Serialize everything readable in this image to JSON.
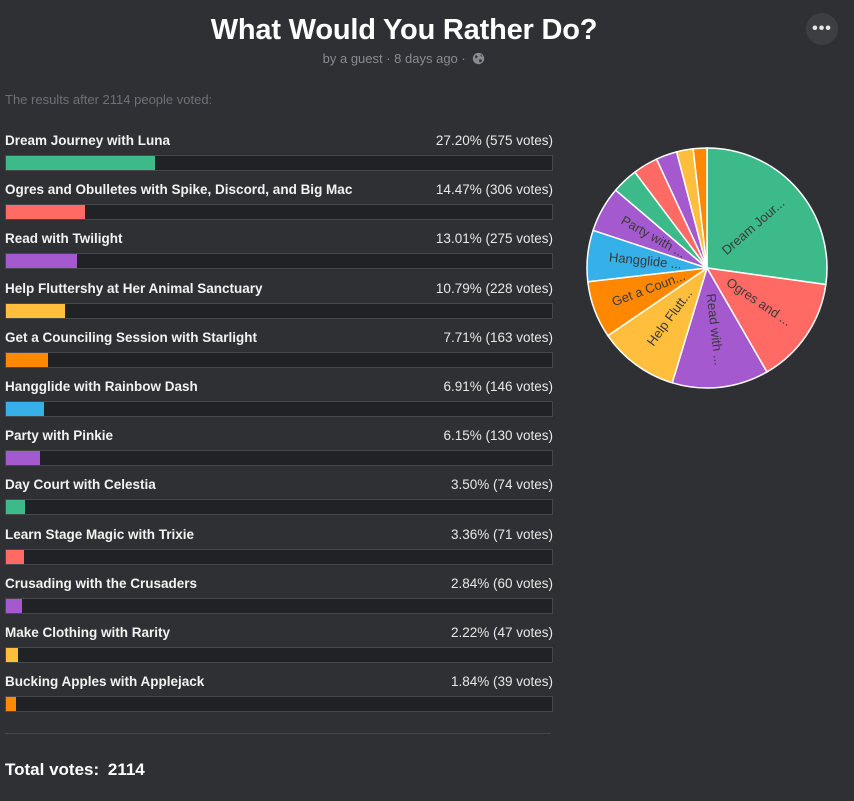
{
  "poll": {
    "title": "What Would You Rather Do?",
    "meta": "by a guest · 8 days ago ·",
    "intro": "The results after 2114 people voted:",
    "total_label": "Total votes:",
    "total_value": "2114",
    "menu_icon": "ellipsis-icon"
  },
  "chart_data": {
    "type": "pie",
    "title": "What Would You Rather Do?",
    "total_votes": 2114,
    "options": [
      {
        "label": "Dream Journey with Luna",
        "percent": 27.2,
        "votes": 575,
        "stat": "27.20% (575 votes)",
        "color": "#3dba8a",
        "slice_label": "Dream Jour..."
      },
      {
        "label": "Ogres and Obulletes with Spike, Discord, and Big Mac",
        "percent": 14.47,
        "votes": 306,
        "stat": "14.47% (306 votes)",
        "color": "#ff6b64",
        "slice_label": "Ogres and ..."
      },
      {
        "label": "Read with Twilight",
        "percent": 13.01,
        "votes": 275,
        "stat": "13.01% (275 votes)",
        "color": "#a459cf",
        "slice_label": "Read with ..."
      },
      {
        "label": "Help Fluttershy at Her Animal Sanctuary",
        "percent": 10.79,
        "votes": 228,
        "stat": "10.79% (228 votes)",
        "color": "#ffbf3d",
        "slice_label": "Help Flutt..."
      },
      {
        "label": "Get a Counciling Session with Starlight",
        "percent": 7.71,
        "votes": 163,
        "stat": "7.71% (163 votes)",
        "color": "#ff8800",
        "slice_label": "Get a Coun..."
      },
      {
        "label": "Hangglide with Rainbow Dash",
        "percent": 6.91,
        "votes": 146,
        "stat": "6.91% (146 votes)",
        "color": "#35b0e8",
        "slice_label": "Hangglide ..."
      },
      {
        "label": "Party with Pinkie",
        "percent": 6.15,
        "votes": 130,
        "stat": "6.15% (130 votes)",
        "color": "#a459cf",
        "slice_label": "Party with ..."
      },
      {
        "label": "Day Court with Celestia",
        "percent": 3.5,
        "votes": 74,
        "stat": "3.50% (74 votes)",
        "color": "#3dba8a",
        "slice_label": ""
      },
      {
        "label": "Learn Stage Magic with Trixie",
        "percent": 3.36,
        "votes": 71,
        "stat": "3.36% (71 votes)",
        "color": "#ff6b64",
        "slice_label": ""
      },
      {
        "label": "Crusading with the Crusaders",
        "percent": 2.84,
        "votes": 60,
        "stat": "2.84% (60 votes)",
        "color": "#a459cf",
        "slice_label": ""
      },
      {
        "label": "Make Clothing with Rarity",
        "percent": 2.22,
        "votes": 47,
        "stat": "2.22% (47 votes)",
        "color": "#ffbf3d",
        "slice_label": ""
      },
      {
        "label": "Bucking Apples with Applejack",
        "percent": 1.84,
        "votes": 39,
        "stat": "1.84% (39 votes)",
        "color": "#ff8800",
        "slice_label": ""
      }
    ]
  }
}
